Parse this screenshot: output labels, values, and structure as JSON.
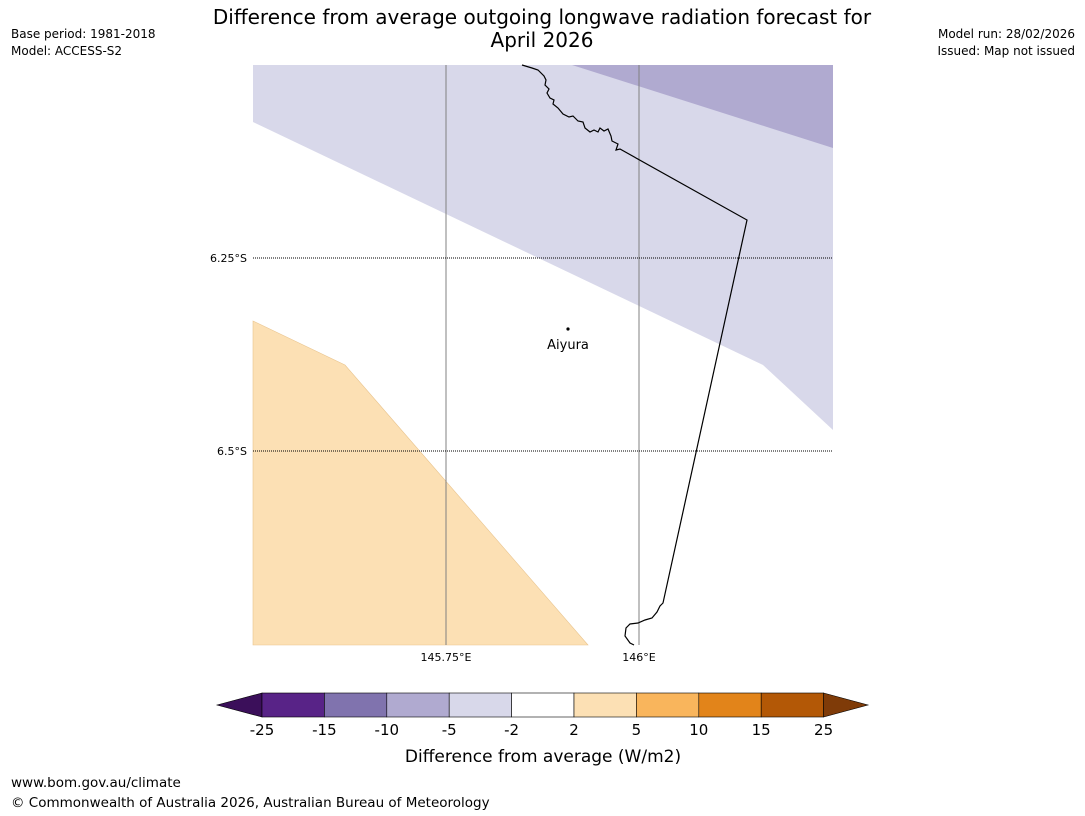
{
  "header": {
    "base_period": "Base period: 1981-2018",
    "model": "Model: ACCESS-S2",
    "title_line1": "Difference from average outgoing longwave radiation forecast for",
    "title_line2": "April 2026",
    "model_run": "Model run: 28/02/2026",
    "issued": "Issued: Map not issued"
  },
  "map": {
    "lat_labels": [
      "6.25°S",
      "6.5°S"
    ],
    "lon_labels": [
      "145.75°E",
      "146°E"
    ],
    "place_label": "Aiyura",
    "colors": {
      "light_purple": "#d8d8ea",
      "mid_purple": "#b0aad0",
      "light_orange": "#fce0b4",
      "coastline": "#000000"
    }
  },
  "colorbar": {
    "title": "Difference from average (W/m2)",
    "ticks": [
      "-25",
      "-15",
      "-10",
      "-5",
      "-2",
      "2",
      "5",
      "10",
      "15",
      "25"
    ],
    "colors": [
      "#3b0f5a",
      "#582387",
      "#8073ae",
      "#b0aad0",
      "#d8d8ea",
      "#ffffff",
      "#fce0b4",
      "#f9b55c",
      "#e2841a",
      "#b35806",
      "#7f3b08"
    ]
  },
  "footer": {
    "url": "www.bom.gov.au/climate",
    "copyright": "© Commonwealth of Australia 2026, Australian Bureau of Meteorology"
  }
}
